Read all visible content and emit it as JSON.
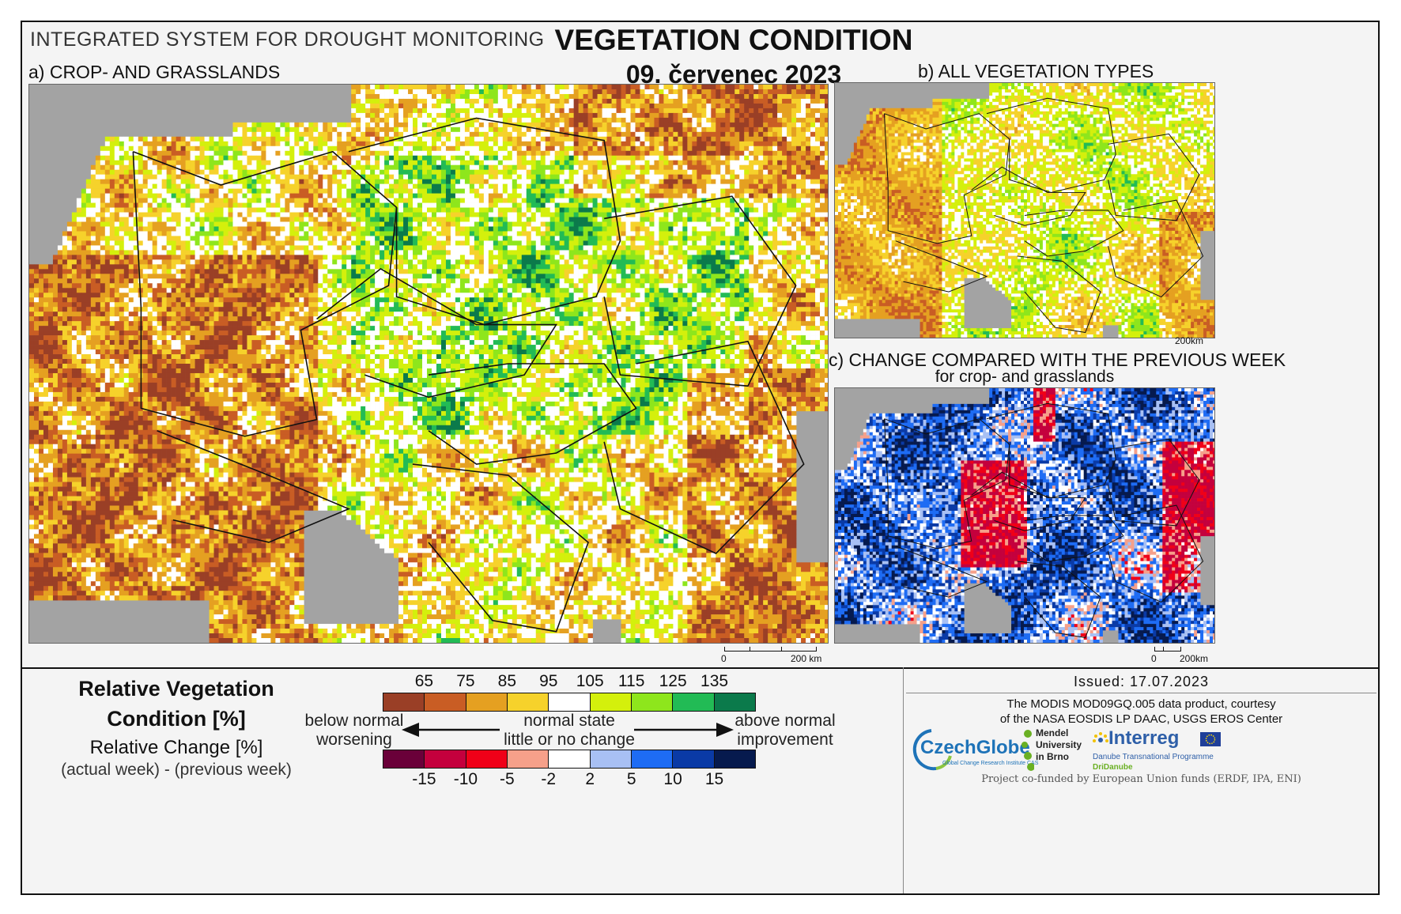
{
  "header": {
    "system": "INTEGRATED SYSTEM FOR DROUGHT MONITORING",
    "title": "VEGETATION CONDITION",
    "date": "09. červenec 2023"
  },
  "panels": {
    "a": {
      "label": "a) CROP- AND GRASSLANDS",
      "scale_start": "0",
      "scale_end": "200 km"
    },
    "b": {
      "label": "b) ALL VEGETATION TYPES",
      "scale_start": "",
      "scale_end": "200km"
    },
    "c": {
      "label": "c) CHANGE COMPARED WITH THE PREVIOUS WEEK",
      "sublabel": "for crop- and grasslands",
      "scale_start": "0",
      "scale_end": "200km"
    }
  },
  "legend": {
    "condition_title_line1": "Relative Vegetation",
    "condition_title_line2": "Condition [%]",
    "change_title": "Relative Change [%]",
    "change_subtitle": "(actual week) - (previous week)",
    "condition_ticks": [
      "65",
      "75",
      "85",
      "95",
      "105",
      "115",
      "125",
      "135"
    ],
    "condition_colors": [
      "#9a3f26",
      "#c95d24",
      "#e5a021",
      "#f6d22b",
      "#ffffff",
      "#d4f00c",
      "#8ee61c",
      "#22bb55",
      "#0b7a4b"
    ],
    "change_ticks": [
      "-15",
      "-10",
      "-5",
      "-2",
      "2",
      "5",
      "10",
      "15"
    ],
    "change_colors": [
      "#6a0039",
      "#c4003d",
      "#f00018",
      "#f6a08a",
      "#ffffff",
      "#a8c0f4",
      "#1e6cf4",
      "#0a3aa6",
      "#061a4e"
    ],
    "below_line1": "below normal",
    "below_line2": "worsening",
    "normal_line1": "normal state",
    "normal_line2": "little or no change",
    "above_line1": "above normal",
    "above_line2": "improvement"
  },
  "footer": {
    "issued": "Issued: 17.07.2023",
    "credit_line1": "The MODIS MOD09GQ.005 data product, courtesy",
    "credit_line2": "of the NASA EOSDIS LP DAAC, USGS EROS Center",
    "logo_czechglobe": "CzechGlobe",
    "logo_czechglobe_sub": "Global Change Research Institute CAS",
    "logo_mendel_line1": "Mendel",
    "logo_mendel_line2": "University",
    "logo_mendel_line3": "in Brno",
    "logo_interreg": "Interreg",
    "logo_interreg_sub": "Danube Transnational Programme",
    "logo_interreg_sub2": "DriDanube",
    "cofunded": "Project co-funded by European Union funds (ERDF, IPA, ENI)"
  },
  "colors": {
    "sea": "#a3a3a3",
    "border": "#111111"
  }
}
